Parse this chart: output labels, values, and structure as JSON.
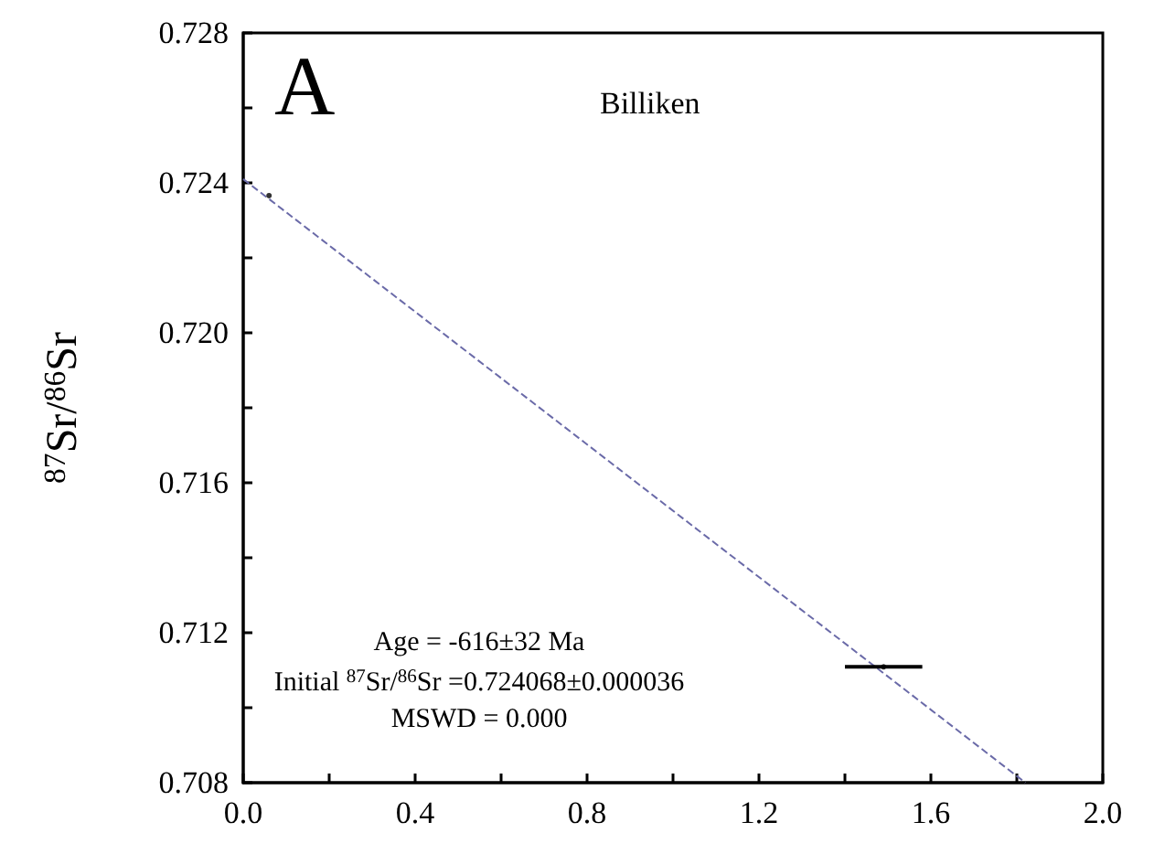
{
  "chart_data": {
    "type": "scatter",
    "ylabel": "$^{87}$Sr/$^{86}$Sr",
    "annotations": [
      "A",
      "Billiken",
      "Age = -616±32 Ma",
      "Initial $^{87}$Sr/$^{86}$Sr =0.724068±0.000036",
      "MSWD = 0.000"
    ],
    "xlim": [
      0,
      2.0
    ],
    "xticks": [
      {
        "value": 0,
        "label": "0.0"
      },
      {
        "value": 0.2,
        "label": null
      },
      0.4,
      {
        "value": 0.6,
        "label": null
      },
      0.8,
      {
        "value": 1.0,
        "label": null
      },
      1.2,
      {
        "value": 1.4,
        "label": null
      },
      1.6,
      {
        "value": 1.8,
        "label": null
      },
      {
        "value": 2,
        "label": "2.0"
      }
    ],
    "ylim": [
      0.708,
      0.728
    ],
    "yticks": [
      0.708,
      {
        "value": 0.71,
        "label": null
      },
      0.712,
      {
        "value": 0.714,
        "label": null
      },
      0.716,
      {
        "value": 0.718,
        "label": null
      },
      {
        "value": 0.72,
        "label": "0.720"
      },
      {
        "value": 0.722,
        "label": null
      },
      0.724,
      {
        "value": 0.726,
        "label": null
      },
      0.728
    ],
    "grid": false,
    "series": [
      {
        "marker": "circle",
        "color": "#000000",
        "x": [
          0.06,
          1.49
        ],
        "values": [
          0.72366,
          0.71109
        ],
        "xerrors": [
          null,
          [
            1.4,
            1.58
          ]
        ]
      },
      {
        "type": "line",
        "marker": "none",
        "line_style": "dashed",
        "color": "#6a6aa8",
        "x": [
          0,
          1.82
        ],
        "values": [
          0.7241,
          0.708
        ]
      }
    ]
  }
}
